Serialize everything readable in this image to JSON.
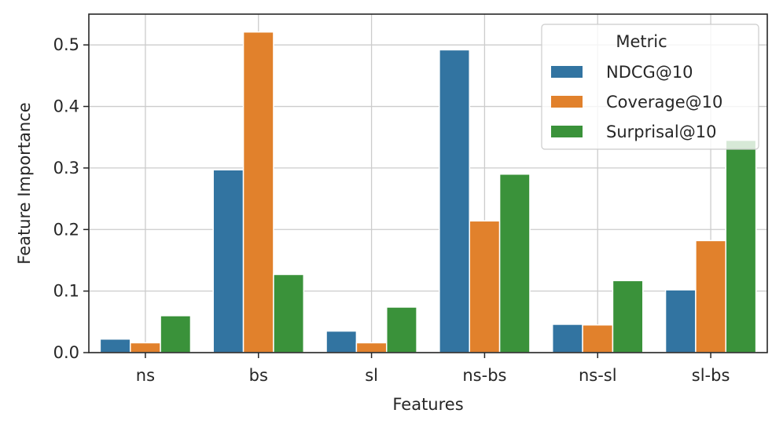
{
  "chart_data": {
    "type": "bar",
    "title": "",
    "xlabel": "Features",
    "ylabel": "Feature Importance",
    "categories": [
      "ns",
      "bs",
      "sl",
      "ns-bs",
      "ns-sl",
      "sl-bs"
    ],
    "series": [
      {
        "name": "NDCG@10",
        "color": "#3274a1",
        "values": [
          0.022,
          0.297,
          0.035,
          0.492,
          0.046,
          0.102
        ]
      },
      {
        "name": "Coverage@10",
        "color": "#e1812c",
        "values": [
          0.016,
          0.521,
          0.016,
          0.214,
          0.045,
          0.182
        ]
      },
      {
        "name": "Surprisal@10",
        "color": "#3a923a",
        "values": [
          0.06,
          0.127,
          0.074,
          0.29,
          0.117,
          0.345
        ]
      }
    ],
    "ylim": [
      0,
      0.55
    ],
    "yticks": [
      0.0,
      0.1,
      0.2,
      0.3,
      0.4,
      0.5
    ],
    "ytick_labels": [
      "0.0",
      "0.1",
      "0.2",
      "0.3",
      "0.4",
      "0.5"
    ],
    "grid": true,
    "legend": {
      "title": "Metric",
      "placement": "top-right"
    }
  }
}
